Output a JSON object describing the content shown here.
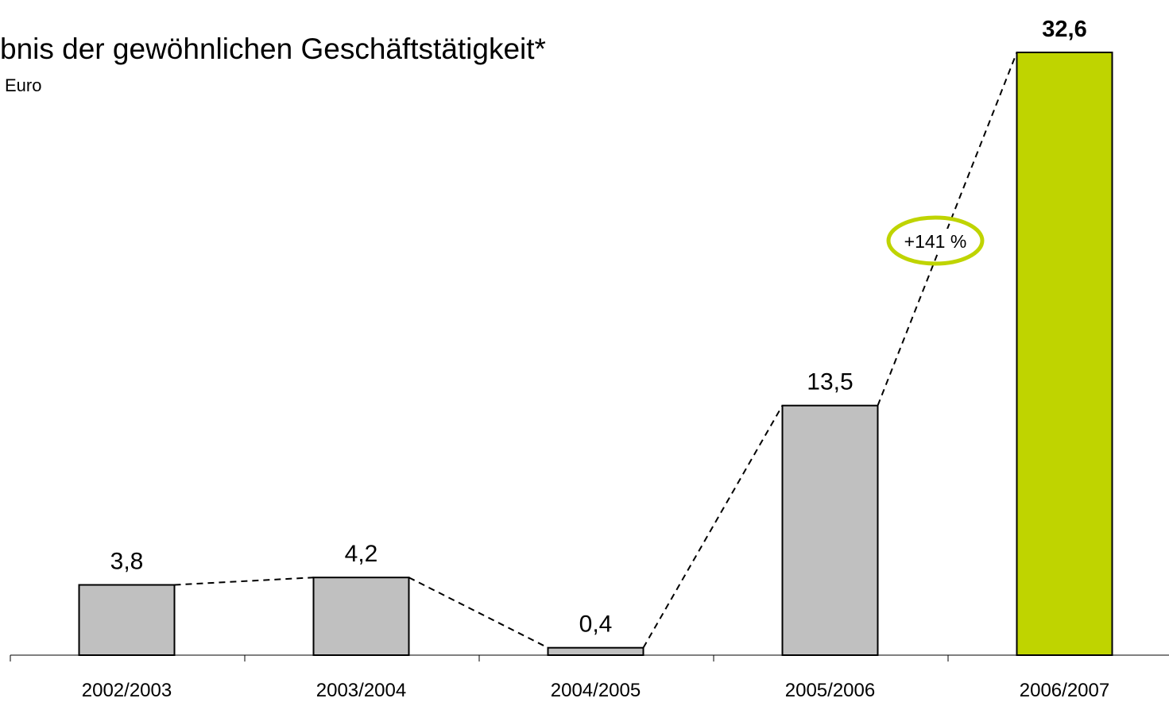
{
  "chart_data": {
    "type": "bar",
    "title": "bnis der gewöhnlichen Geschäftstätigkeit*",
    "subtitle": "Euro",
    "annotation": "+141 %",
    "categories": [
      "2002/2003",
      "2003/2004",
      "2004/2005",
      "2005/2006",
      "2006/2007"
    ],
    "values": [
      3.8,
      4.2,
      0.4,
      13.5,
      32.6
    ],
    "value_labels": [
      "3,8",
      "4,2",
      "0,4",
      "13,5",
      "32,6"
    ],
    "colors": [
      "#c0c0c0",
      "#c0c0c0",
      "#c0c0c0",
      "#c0c0c0",
      "#bfd400"
    ]
  }
}
